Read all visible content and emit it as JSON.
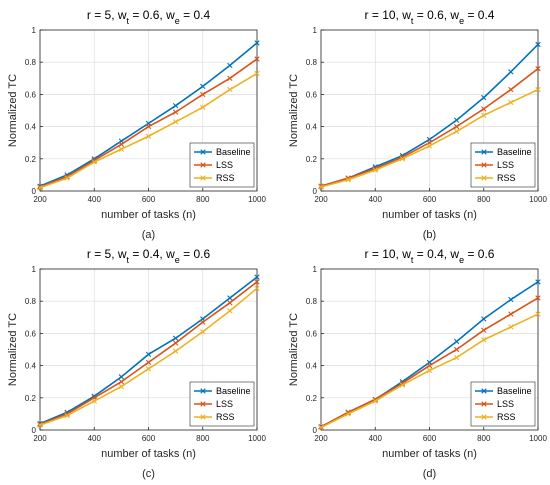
{
  "chart_data": [
    {
      "type": "line",
      "title": "r = 5, w_t = 0.6, w_e = 0.4",
      "title_parts": {
        "a": "r = 5, w",
        "t": "t",
        "b": " = 0.6, w",
        "e": "e",
        "c": " = 0.4"
      },
      "subcaption": "(a)",
      "xlabel": "number of tasks (n)",
      "ylabel": "Normalized TC",
      "xlim": [
        200,
        1000
      ],
      "ylim": [
        0,
        1
      ],
      "xticks": [
        200,
        400,
        600,
        800,
        1000
      ],
      "yticks": [
        0,
        0.2,
        0.4,
        0.6,
        0.8,
        1
      ],
      "x": [
        200,
        300,
        400,
        500,
        600,
        700,
        800,
        900,
        1000
      ],
      "legend_position": "bottom-right",
      "grid": true,
      "series": [
        {
          "name": "Baseline",
          "color": "#0072BD",
          "values": [
            0.03,
            0.1,
            0.2,
            0.31,
            0.42,
            0.53,
            0.65,
            0.78,
            0.92
          ]
        },
        {
          "name": "LSS",
          "color": "#D95319",
          "values": [
            0.025,
            0.09,
            0.19,
            0.29,
            0.4,
            0.49,
            0.6,
            0.7,
            0.82
          ]
        },
        {
          "name": "RSS",
          "color": "#EDB120",
          "values": [
            0.02,
            0.08,
            0.18,
            0.26,
            0.34,
            0.43,
            0.52,
            0.63,
            0.73
          ]
        }
      ]
    },
    {
      "type": "line",
      "title": "r = 10, w_t = 0.6, w_e = 0.4",
      "title_parts": {
        "a": "r = 10, w",
        "t": "t",
        "b": " = 0.6, w",
        "e": "e",
        "c": " = 0.4"
      },
      "subcaption": "(b)",
      "xlabel": "number of tasks (n)",
      "ylabel": "Normalized TC",
      "xlim": [
        200,
        1000
      ],
      "ylim": [
        0,
        1
      ],
      "xticks": [
        200,
        400,
        600,
        800,
        1000
      ],
      "yticks": [
        0,
        0.2,
        0.4,
        0.6,
        0.8,
        1
      ],
      "x": [
        200,
        300,
        400,
        500,
        600,
        700,
        800,
        900,
        1000
      ],
      "legend_position": "bottom-right",
      "grid": true,
      "series": [
        {
          "name": "Baseline",
          "color": "#0072BD",
          "values": [
            0.03,
            0.08,
            0.15,
            0.22,
            0.32,
            0.44,
            0.58,
            0.74,
            0.91
          ]
        },
        {
          "name": "LSS",
          "color": "#D95319",
          "values": [
            0.03,
            0.08,
            0.14,
            0.21,
            0.3,
            0.4,
            0.51,
            0.63,
            0.76
          ]
        },
        {
          "name": "RSS",
          "color": "#EDB120",
          "values": [
            0.025,
            0.07,
            0.13,
            0.2,
            0.28,
            0.37,
            0.47,
            0.55,
            0.63
          ]
        }
      ]
    },
    {
      "type": "line",
      "title": "r = 5, w_t = 0.4, w_e = 0.6",
      "title_parts": {
        "a": "r = 5, w",
        "t": "t",
        "b": " = 0.4, w",
        "e": "e",
        "c": " = 0.6"
      },
      "subcaption": "(c)",
      "xlabel": "number of tasks (n)",
      "ylabel": "Normalized TC",
      "xlim": [
        200,
        1000
      ],
      "ylim": [
        0,
        1
      ],
      "xticks": [
        200,
        400,
        600,
        800,
        1000
      ],
      "yticks": [
        0,
        0.2,
        0.4,
        0.6,
        0.8,
        1
      ],
      "x": [
        200,
        300,
        400,
        500,
        600,
        700,
        800,
        900,
        1000
      ],
      "legend_position": "bottom-right",
      "grid": true,
      "series": [
        {
          "name": "Baseline",
          "color": "#0072BD",
          "values": [
            0.04,
            0.11,
            0.21,
            0.33,
            0.47,
            0.57,
            0.69,
            0.82,
            0.95
          ]
        },
        {
          "name": "LSS",
          "color": "#D95319",
          "values": [
            0.035,
            0.1,
            0.2,
            0.3,
            0.42,
            0.54,
            0.67,
            0.79,
            0.92
          ]
        },
        {
          "name": "RSS",
          "color": "#EDB120",
          "values": [
            0.03,
            0.09,
            0.18,
            0.27,
            0.38,
            0.49,
            0.61,
            0.74,
            0.88
          ]
        }
      ]
    },
    {
      "type": "line",
      "title": "r = 10, w_t = 0.4, w_e = 0.6",
      "title_parts": {
        "a": "r = 10, w",
        "t": "t",
        "b": " = 0.4, w",
        "e": "e",
        "c": " = 0.6"
      },
      "subcaption": "(d)",
      "xlabel": "number of tasks (n)",
      "ylabel": "Normalized TC",
      "xlim": [
        200,
        1000
      ],
      "ylim": [
        0,
        1
      ],
      "xticks": [
        200,
        400,
        600,
        800,
        1000
      ],
      "yticks": [
        0,
        0.2,
        0.4,
        0.6,
        0.8,
        1
      ],
      "x": [
        200,
        300,
        400,
        500,
        600,
        700,
        800,
        900,
        1000
      ],
      "legend_position": "bottom-right",
      "grid": true,
      "series": [
        {
          "name": "Baseline",
          "color": "#0072BD",
          "values": [
            0.02,
            0.11,
            0.19,
            0.3,
            0.42,
            0.55,
            0.69,
            0.81,
            0.92
          ]
        },
        {
          "name": "LSS",
          "color": "#D95319",
          "values": [
            0.02,
            0.11,
            0.19,
            0.29,
            0.4,
            0.5,
            0.62,
            0.72,
            0.82
          ]
        },
        {
          "name": "RSS",
          "color": "#EDB120",
          "values": [
            0.015,
            0.1,
            0.18,
            0.28,
            0.37,
            0.45,
            0.56,
            0.64,
            0.72
          ]
        }
      ]
    }
  ]
}
